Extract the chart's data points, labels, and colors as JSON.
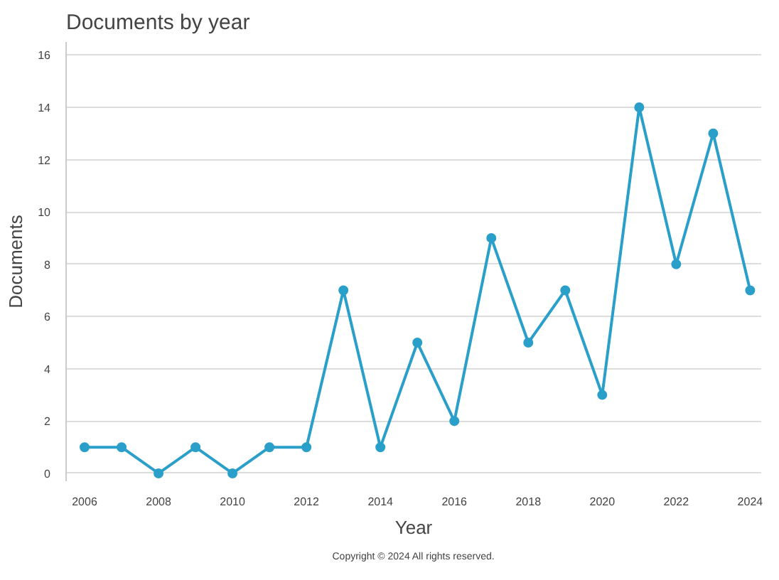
{
  "chart_data": {
    "type": "line",
    "title": "Documents by year",
    "xlabel": "Year",
    "ylabel": "Documents",
    "x": [
      2006,
      2007,
      2008,
      2009,
      2010,
      2011,
      2012,
      2013,
      2014,
      2015,
      2016,
      2017,
      2018,
      2019,
      2020,
      2021,
      2022,
      2023,
      2024
    ],
    "series": [
      {
        "color": "#2a9fc9",
        "values": [
          1,
          1,
          0,
          1,
          0,
          1,
          1,
          7,
          1,
          5,
          2,
          9,
          5,
          7,
          3,
          14,
          8,
          13,
          7
        ]
      }
    ],
    "xlim": [
      2005.5,
      2024.3
    ],
    "xticks": [
      2006,
      2008,
      2010,
      2012,
      2014,
      2016,
      2018,
      2020,
      2022,
      2024
    ],
    "ylim": [
      -0.3,
      16.5
    ],
    "yticks": [
      0,
      2,
      4,
      6,
      8,
      10,
      12,
      14,
      16
    ],
    "grid": "y",
    "marker": "circle",
    "line_style": "solid",
    "annotations": [
      "Copyright © 2024 All rights reserved."
    ]
  }
}
